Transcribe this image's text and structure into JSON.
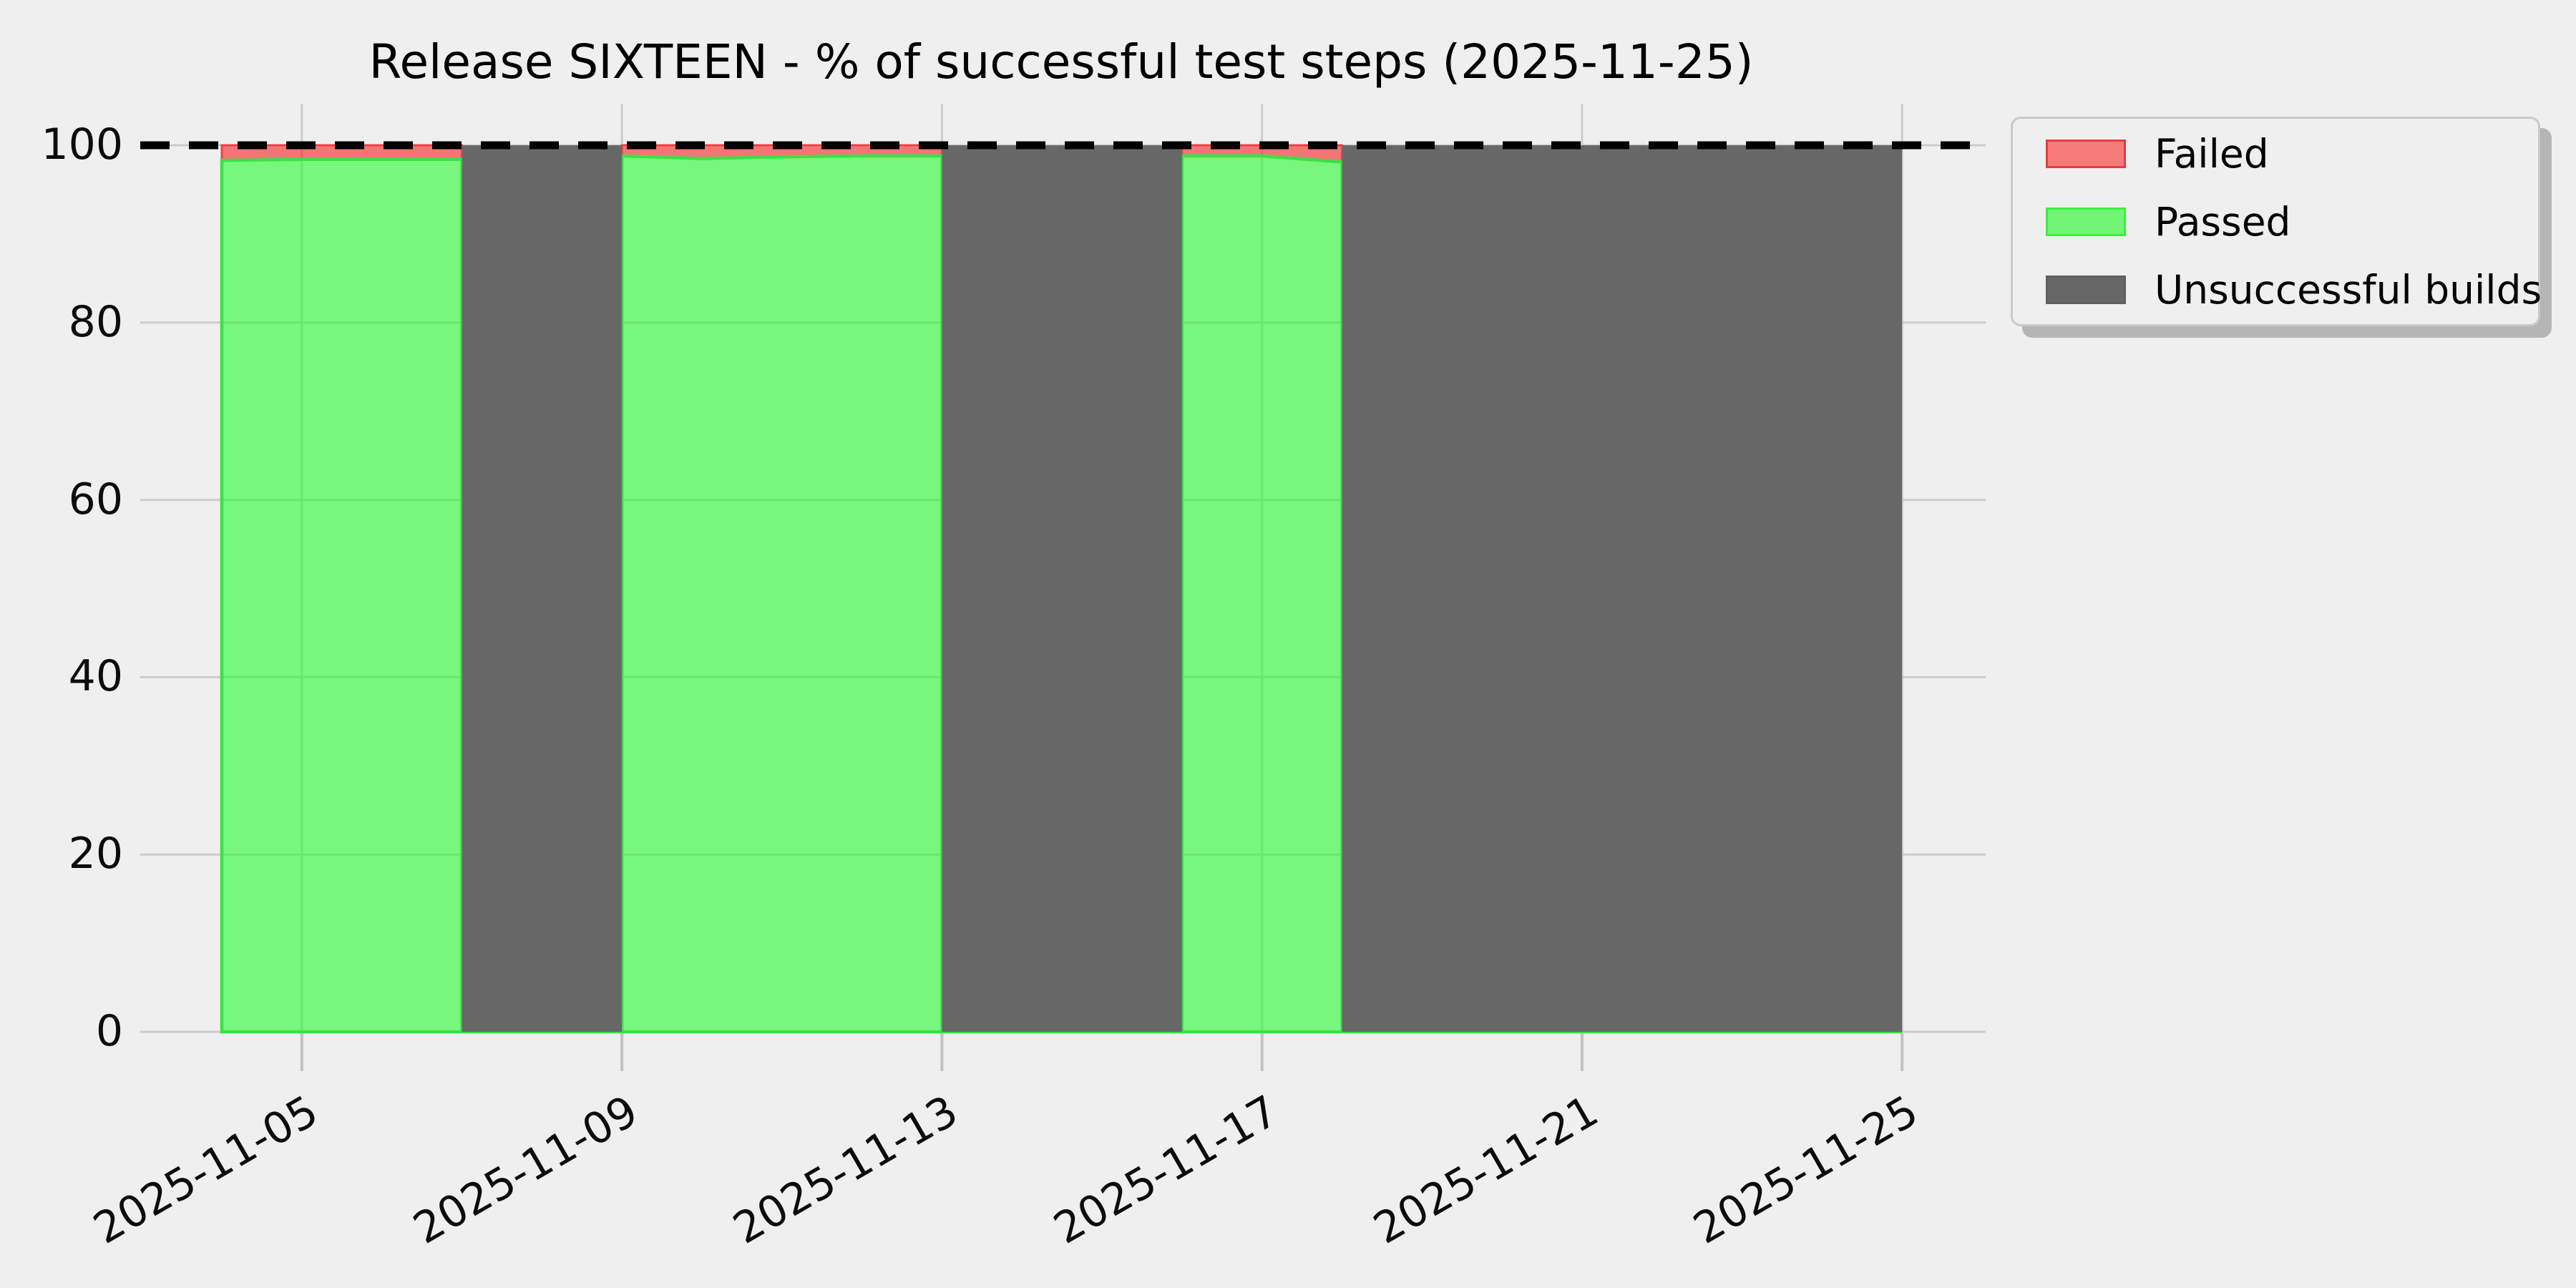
{
  "figure": {
    "title": "Release SIXTEEN - % of successful test steps (2025-11-25)",
    "background": "#efefef"
  },
  "legend": {
    "position": "upper right, outside plot",
    "items": [
      {
        "label": "Failed",
        "fill": "#f57b7b",
        "border": "#e83a3e"
      },
      {
        "label": "Passed",
        "fill": "#72f576",
        "border": "#38f13c"
      },
      {
        "label": "Unsuccessful builds",
        "fill": "#666666",
        "border": "#5f5f5f"
      }
    ]
  },
  "chart_data": {
    "type": "area",
    "title": "Release SIXTEEN - % of successful test steps (2025-11-25)",
    "xlabel": "",
    "ylabel": "",
    "x_tick_labels": [
      "2025-11-05",
      "2025-11-09",
      "2025-11-13",
      "2025-11-17",
      "2025-11-21",
      "2025-11-25"
    ],
    "y_tick_labels": [
      0,
      20,
      40,
      60,
      80,
      100
    ],
    "ylim": [
      0,
      104.7
    ],
    "x_range": [
      "2025-11-03",
      "2025-11-26"
    ],
    "grid": true,
    "stacking_order": [
      "Passed (bottom)",
      "Failed (middle)",
      "Unsuccessful builds (top)"
    ],
    "target_line": {
      "value": 100,
      "style": "dashed",
      "color": "#000000"
    },
    "stack": {
      "dates": [
        "2025-11-04",
        "2025-11-05",
        "2025-11-06",
        "2025-11-07",
        "2025-11-07",
        "2025-11-09",
        "2025-11-09",
        "2025-11-10",
        "2025-11-11",
        "2025-11-12",
        "2025-11-13",
        "2025-11-13",
        "2025-11-16",
        "2025-11-16",
        "2025-11-17",
        "2025-11-18",
        "2025-11-18",
        "2025-11-25"
      ],
      "passed": [
        98.3,
        98.4,
        98.4,
        98.4,
        0,
        0,
        98.8,
        98.5,
        98.7,
        98.8,
        98.8,
        0,
        0,
        98.8,
        98.8,
        98.1,
        0,
        0
      ],
      "failed": [
        1.7,
        1.6,
        1.6,
        1.6,
        0,
        0,
        1.2,
        1.5,
        1.3,
        1.2,
        1.2,
        0,
        0,
        1.2,
        1.2,
        1.9,
        0,
        0
      ],
      "builds": [
        0,
        0,
        0,
        0,
        100,
        100,
        0,
        0,
        0,
        0,
        0,
        100,
        100,
        0,
        0,
        0,
        100,
        100
      ]
    },
    "colors": {
      "passed_fill": "rgba(32,251,41,0.57)",
      "passed_edge": "#3ce046",
      "failed_fill": "rgba(248,17,19,0.55)",
      "failed_edge": "#ef4146",
      "builds_fill": "#676767",
      "gridline": "#cccccc",
      "tick_mark": "#c2c2c2",
      "reference_line": "#000000",
      "background": "#efefef"
    }
  }
}
